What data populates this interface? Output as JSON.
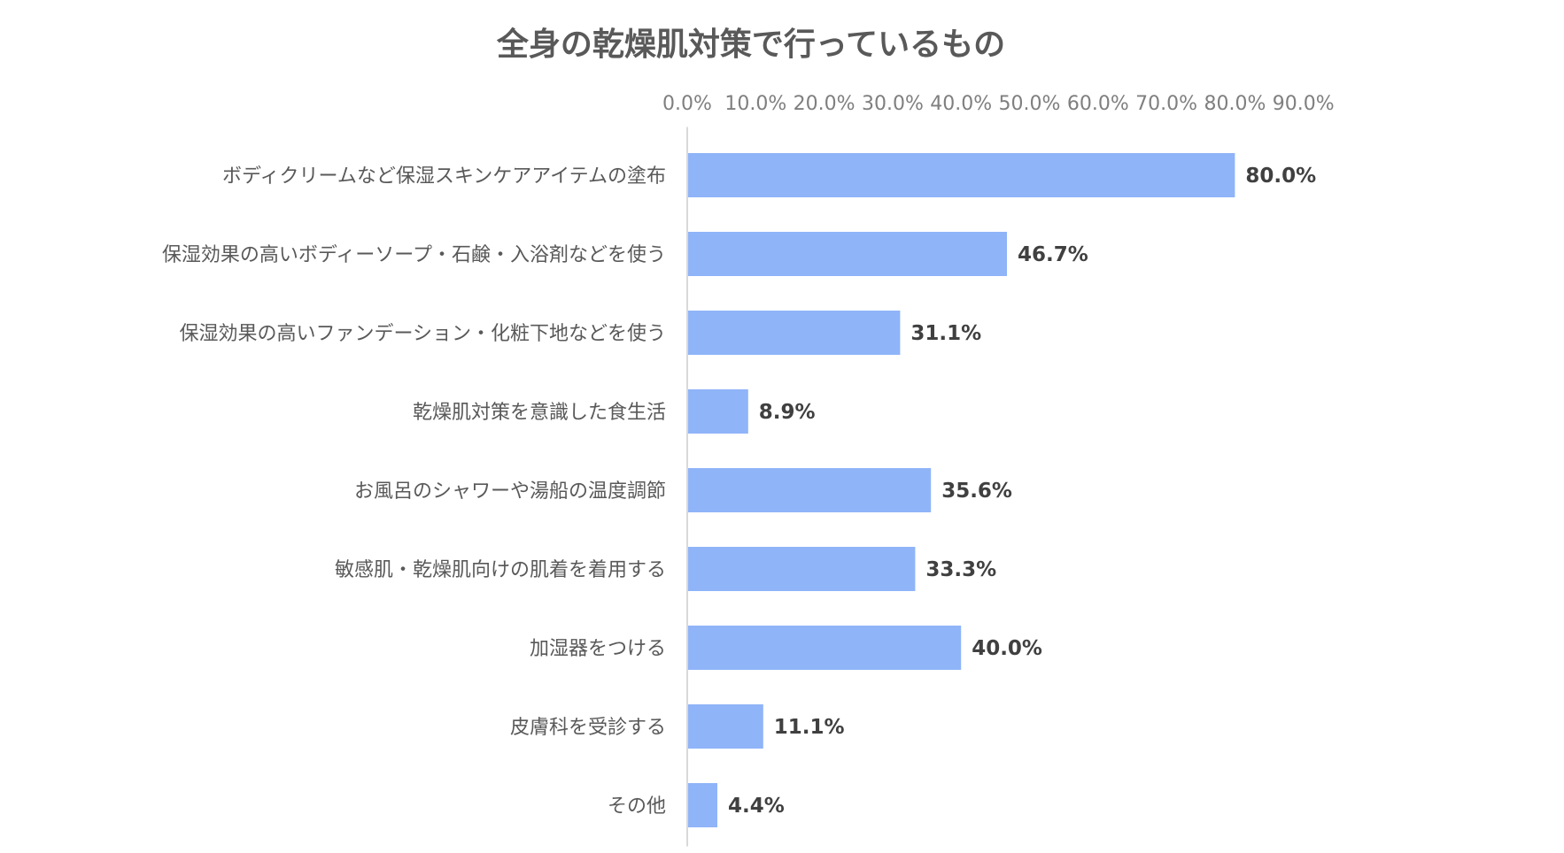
{
  "chart_data": {
    "type": "bar",
    "orientation": "horizontal",
    "title": "全身の乾燥肌対策で行っているもの",
    "xlabel": "",
    "ylabel": "",
    "xlim": [
      0,
      90
    ],
    "axis_position": "top",
    "tick_labels": [
      "0.0%",
      "10.0%",
      "20.0%",
      "30.0%",
      "40.0%",
      "50.0%",
      "60.0%",
      "70.0%",
      "80.0%",
      "90.0%"
    ],
    "categories": [
      "ボディクリームなど保湿スキンケアアイテムの塗布",
      "保湿効果の高いボディーソープ・石鹸・入浴剤などを使う",
      "保湿効果の高いファンデーション・化粧下地などを使う",
      "乾燥肌対策を意識した食生活",
      "お風呂のシャワーや湯船の温度調節",
      "敏感肌・乾燥肌向けの肌着を着用する",
      "加湿器をつける",
      "皮膚科を受診する",
      "その他"
    ],
    "values": [
      80.0,
      46.7,
      31.1,
      8.9,
      35.6,
      33.3,
      40.0,
      11.1,
      4.4
    ],
    "data_labels": [
      "80.0%",
      "46.7%",
      "31.1%",
      "8.9%",
      "35.6%",
      "33.3%",
      "40.0%",
      "11.1%",
      "4.4%"
    ],
    "grid": false,
    "legend": "none",
    "bar_color": "#8fb4f8",
    "axis_line_color": "#d9d9d9"
  }
}
